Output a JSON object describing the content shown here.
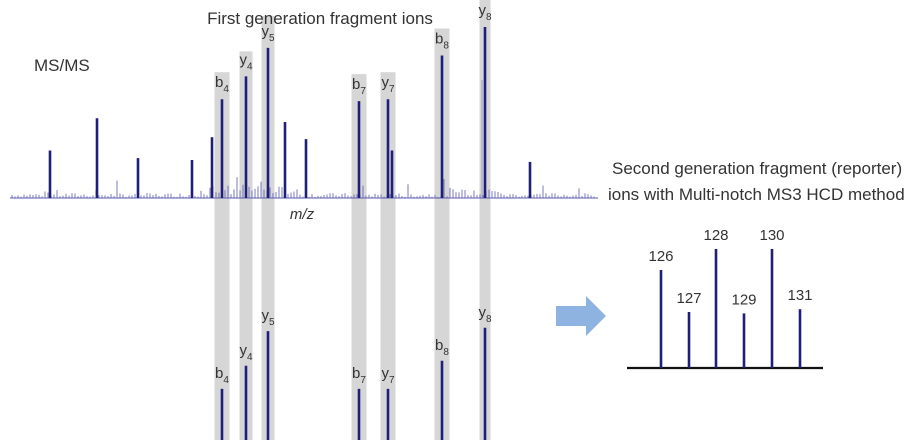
{
  "title": "First generation fragment ions",
  "spectrum_label": "MS/MS",
  "axis_label": "m/z",
  "reporter_title_line1": "Second generation fragment (reporter)",
  "reporter_title_line2": "ions with Multi-notch MS3 HCD method",
  "colors": {
    "peak": "#1f1f7a",
    "highlight": "#d6d6d6",
    "noise": "#5a5ab0",
    "arrow": "#8fb3e0",
    "axis": "#111111",
    "text": "#333333"
  },
  "chart_data": [
    {
      "type": "bar",
      "name": "MS/MS spectrum",
      "highlighted_ions": [
        {
          "ion": "b",
          "sub": "4",
          "intensity": 0.52
        },
        {
          "ion": "y",
          "sub": "4",
          "intensity": 0.64
        },
        {
          "ion": "y",
          "sub": "5",
          "intensity": 0.79
        },
        {
          "ion": "b",
          "sub": "7",
          "intensity": 0.51
        },
        {
          "ion": "y",
          "sub": "7",
          "intensity": 0.52
        },
        {
          "ion": "b",
          "sub": "8",
          "intensity": 0.75
        },
        {
          "ion": "y",
          "sub": "8",
          "intensity": 0.9
        }
      ],
      "other_peaks": [
        0.25,
        0.42,
        0.21,
        0.2,
        0.32,
        0.4,
        0.31,
        0.25
      ]
    },
    {
      "type": "bar",
      "name": "MS3 spectrum",
      "highlighted_ions": [
        {
          "ion": "b",
          "sub": "4",
          "intensity": 0.31
        },
        {
          "ion": "y",
          "sub": "4",
          "intensity": 0.45
        },
        {
          "ion": "y",
          "sub": "5",
          "intensity": 0.66
        },
        {
          "ion": "b",
          "sub": "7",
          "intensity": 0.31
        },
        {
          "ion": "y",
          "sub": "7",
          "intensity": 0.31
        },
        {
          "ion": "b",
          "sub": "8",
          "intensity": 0.48
        },
        {
          "ion": "y",
          "sub": "8",
          "intensity": 0.68
        }
      ]
    },
    {
      "type": "bar",
      "name": "reporter ions",
      "categories": [
        "126",
        "127",
        "128",
        "129",
        "130",
        "131"
      ],
      "values": [
        0.7,
        0.4,
        0.85,
        0.39,
        0.85,
        0.42
      ]
    }
  ]
}
